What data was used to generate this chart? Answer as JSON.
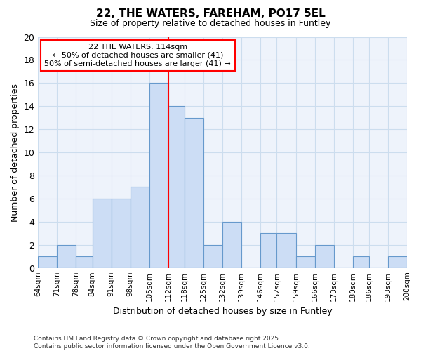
{
  "title": "22, THE WATERS, FAREHAM, PO17 5EL",
  "subtitle": "Size of property relative to detached houses in Funtley",
  "xlabel": "Distribution of detached houses by size in Funtley",
  "ylabel": "Number of detached properties",
  "bins": [
    64,
    71,
    78,
    84,
    91,
    98,
    105,
    112,
    118,
    125,
    132,
    139,
    146,
    152,
    159,
    166,
    173,
    180,
    186,
    193,
    200
  ],
  "counts": [
    1,
    2,
    1,
    6,
    6,
    7,
    16,
    14,
    13,
    2,
    4,
    0,
    3,
    3,
    1,
    2,
    0,
    1,
    0,
    1
  ],
  "bar_color": "#ccddf5",
  "bar_edge_color": "#6699cc",
  "grid_color": "#ccddee",
  "red_line_x": 112,
  "annotation_line1": "22 THE WATERS: 114sqm",
  "annotation_line2": "← 50% of detached houses are smaller (41)",
  "annotation_line3": "50% of semi-detached houses are larger (41) →",
  "ylim": [
    0,
    20
  ],
  "yticks": [
    0,
    2,
    4,
    6,
    8,
    10,
    12,
    14,
    16,
    18,
    20
  ],
  "footer": "Contains HM Land Registry data © Crown copyright and database right 2025.\nContains public sector information licensed under the Open Government Licence v3.0.",
  "bg_color": "#ffffff",
  "plot_bg_color": "#eef3fb"
}
